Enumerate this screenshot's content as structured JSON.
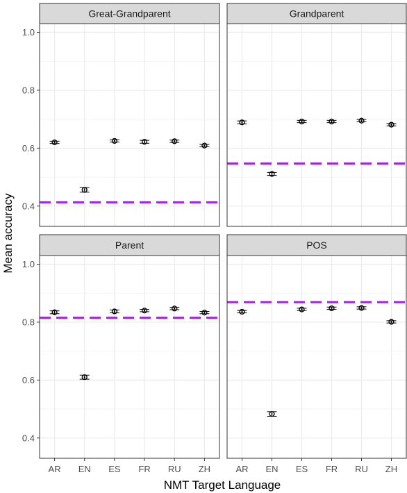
{
  "chart_data": {
    "type": "scatter",
    "xlabel": "NMT Target Language",
    "ylabel": "Mean accuracy",
    "categories": [
      "AR",
      "EN",
      "ES",
      "FR",
      "RU",
      "ZH"
    ],
    "y_ticks": [
      "0.4",
      "0.6",
      "0.8",
      "1.0"
    ],
    "y_tick_values": [
      0.4,
      0.6,
      0.8,
      1.0
    ],
    "baseline_color": "#a020f0",
    "point_color": "#000000",
    "panels": [
      {
        "title": "Great-Grandparent",
        "ylim": [
          0.33,
          1.03
        ],
        "values": [
          0.62,
          0.456,
          0.625,
          0.622,
          0.624,
          0.609
        ],
        "err": [
          0.004,
          0.008,
          0.004,
          0.005,
          0.004,
          0.004
        ],
        "baseline": 0.413
      },
      {
        "title": "Grandparent",
        "ylim": [
          0.33,
          1.03
        ],
        "values": [
          0.689,
          0.511,
          0.692,
          0.692,
          0.695,
          0.681
        ],
        "err": [
          0.005,
          0.005,
          0.004,
          0.004,
          0.004,
          0.004
        ],
        "baseline": 0.547
      },
      {
        "title": "Parent",
        "ylim": [
          0.33,
          1.03
        ],
        "values": [
          0.834,
          0.61,
          0.837,
          0.84,
          0.847,
          0.833
        ],
        "err": [
          0.005,
          0.007,
          0.005,
          0.004,
          0.004,
          0.004
        ],
        "baseline": 0.815
      },
      {
        "title": "POS",
        "ylim": [
          0.33,
          1.03
        ],
        "values": [
          0.836,
          0.483,
          0.844,
          0.848,
          0.849,
          0.801
        ],
        "err": [
          0.004,
          0.008,
          0.004,
          0.004,
          0.004,
          0.004
        ],
        "baseline": 0.869
      }
    ]
  }
}
